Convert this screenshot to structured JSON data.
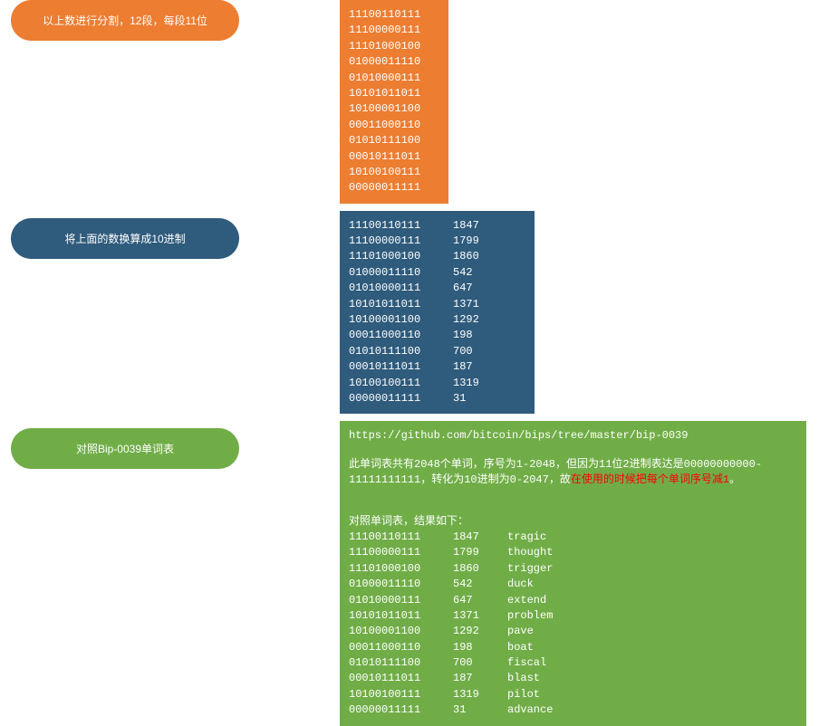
{
  "colors": {
    "orange": "#ed7d31",
    "blue": "#2f5b7c",
    "green": "#70ad47",
    "red": "#ff0000",
    "white": "#ffffff"
  },
  "step1": {
    "label": "以上数进行分割，12段，每段11位",
    "binary": [
      "11100110111",
      "11100000111",
      "11101000100",
      "01000011110",
      "01010000111",
      "10101011011",
      "10100001100",
      "00011000110",
      "01010111100",
      "00010111011",
      "10100100111",
      "00000011111"
    ]
  },
  "step2": {
    "label": "将上面的数换算成10进制",
    "rows": [
      {
        "bin": "11100110111",
        "dec": "1847"
      },
      {
        "bin": "11100000111",
        "dec": "1799"
      },
      {
        "bin": "11101000100",
        "dec": "1860"
      },
      {
        "bin": "01000011110",
        "dec": "542"
      },
      {
        "bin": "01010000111",
        "dec": "647"
      },
      {
        "bin": "10101011011",
        "dec": "1371"
      },
      {
        "bin": "10100001100",
        "dec": "1292"
      },
      {
        "bin": "00011000110",
        "dec": "198"
      },
      {
        "bin": "01010111100",
        "dec": "700"
      },
      {
        "bin": "00010111011",
        "dec": "187"
      },
      {
        "bin": "10100100111",
        "dec": "1319"
      },
      {
        "bin": "00000011111",
        "dec": "31"
      }
    ]
  },
  "step3": {
    "label": "对照Bip-0039单词表",
    "url": "https://github.com/bitcoin/bips/tree/master/bip-0039",
    "note_prefix": "此单词表共有2048个单词，序号为1-2048，但因为11位2进制表达是00000000000-11111111111，转化为10进制为0-2047，故",
    "note_red": "在使用的时候把每个单词序号减1",
    "note_suffix": "。",
    "result_label": "对照单词表，结果如下：",
    "rows": [
      {
        "bin": "11100110111",
        "dec": "1847",
        "word": "tragic"
      },
      {
        "bin": "11100000111",
        "dec": "1799",
        "word": "thought"
      },
      {
        "bin": "11101000100",
        "dec": "1860",
        "word": "trigger"
      },
      {
        "bin": "01000011110",
        "dec": "542",
        "word": "duck"
      },
      {
        "bin": "01010000111",
        "dec": "647",
        "word": "extend"
      },
      {
        "bin": "10101011011",
        "dec": "1371",
        "word": "problem"
      },
      {
        "bin": "10100001100",
        "dec": "1292",
        "word": "pave"
      },
      {
        "bin": "00011000110",
        "dec": "198",
        "word": "boat"
      },
      {
        "bin": "01010111100",
        "dec": "700",
        "word": "fiscal"
      },
      {
        "bin": "00010111011",
        "dec": "187",
        "word": "blast"
      },
      {
        "bin": "10100100111",
        "dec": "1319",
        "word": "pilot"
      },
      {
        "bin": "00000011111",
        "dec": "31",
        "word": "advance"
      }
    ]
  }
}
